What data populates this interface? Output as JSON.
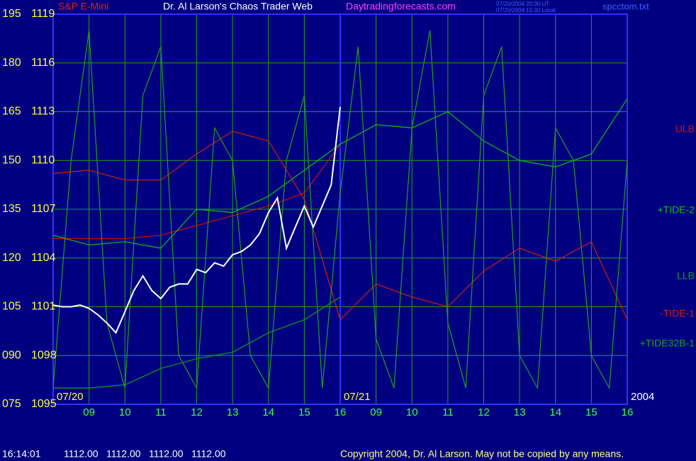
{
  "chart_data": {
    "type": "line",
    "header": {
      "symbol": "S&P E-Mini",
      "title": "Dr. Al Larson's Chaos Trader Web",
      "site": "Daytradingforecasts.com",
      "stamps": [
        "07/20/2004 20:30 UT",
        "07/20/2004 15:30 Local"
      ],
      "file": "spcctom.txt"
    },
    "xlim": [
      0,
      16
    ],
    "xticks": [
      {
        "value": 1,
        "label": "09"
      },
      {
        "value": 2,
        "label": "10"
      },
      {
        "value": 3,
        "label": "11"
      },
      {
        "value": 4,
        "label": "12"
      },
      {
        "value": 5,
        "label": "13"
      },
      {
        "value": 6,
        "label": "14"
      },
      {
        "value": 7,
        "label": "15"
      },
      {
        "value": 8,
        "label": "16"
      },
      {
        "value": 9,
        "label": "09"
      },
      {
        "value": 10,
        "label": "10"
      },
      {
        "value": 11,
        "label": "11"
      },
      {
        "value": 12,
        "label": "12"
      },
      {
        "value": 13,
        "label": "13"
      },
      {
        "value": 14,
        "label": "14"
      },
      {
        "value": 15,
        "label": "15"
      },
      {
        "value": 16,
        "label": "16"
      }
    ],
    "ylim": [
      75,
      195
    ],
    "yticks": [
      195,
      180,
      165,
      150,
      135,
      120,
      105,
      {
        "value": 90,
        "label": "090"
      },
      {
        "value": 75,
        "label": "075"
      }
    ],
    "y2lim": [
      1095,
      1119
    ],
    "y2ticks": [
      1119,
      1116,
      1113,
      1110,
      1107,
      1104,
      1101,
      1098,
      1095
    ],
    "grid": true,
    "annotations": [
      {
        "text": "07/20",
        "x": 0
      },
      {
        "text": "07/21",
        "x": 8
      },
      {
        "text": "2004",
        "x": 16
      }
    ],
    "series": [
      {
        "name": "ULB",
        "color": "#d01010",
        "x": [
          0,
          1,
          2,
          3,
          4,
          5,
          6,
          7,
          8
        ],
        "values": [
          126,
          126,
          126,
          127,
          130,
          133,
          136,
          140,
          155
        ]
      },
      {
        "name": "+TIDE-2",
        "color": "#10c010",
        "x": [
          0,
          1,
          2,
          3,
          4,
          5,
          6,
          7,
          8,
          9,
          10,
          11,
          12,
          13,
          14,
          15,
          16
        ],
        "values": [
          127,
          124,
          125,
          123,
          135,
          134,
          139,
          147,
          155,
          161,
          160,
          165,
          156,
          150,
          148,
          152,
          169
        ]
      },
      {
        "name": "LLB",
        "color": "#10a010",
        "x": [
          0,
          1,
          2,
          3,
          4,
          5,
          6,
          7,
          8
        ],
        "values": [
          80,
          80,
          81,
          86,
          89,
          91,
          97,
          101,
          108
        ]
      },
      {
        "name": "-TIDE-1",
        "color": "#d02010",
        "x": [
          0,
          1,
          2,
          3,
          4,
          5,
          6,
          7,
          8,
          9,
          10,
          11,
          12,
          13,
          14,
          15,
          16
        ],
        "values": [
          146,
          147,
          144,
          144,
          152,
          159,
          156,
          138,
          101,
          112,
          108,
          105,
          116,
          123,
          119,
          125,
          101
        ]
      },
      {
        "name": "+TIDE32B-1",
        "color": "#20a020",
        "x": [
          0,
          0.5,
          1,
          1.5,
          2,
          2.5,
          3,
          3.5,
          4,
          4.5,
          5,
          5.5,
          6,
          6.5,
          7,
          7.5,
          8,
          8.5,
          9,
          9.5,
          10,
          10.5,
          11,
          11.5,
          12,
          12.5,
          13,
          13.5,
          14,
          14.5,
          15,
          15.5,
          16
        ],
        "values": [
          80,
          150,
          190,
          100,
          80,
          170,
          185,
          90,
          80,
          160,
          150,
          90,
          80,
          150,
          170,
          80,
          140,
          185,
          95,
          80,
          160,
          190,
          100,
          80,
          170,
          185,
          90,
          80,
          160,
          150,
          90,
          80,
          150
        ]
      },
      {
        "color": "#ffffff",
        "axis": "y2",
        "x": [
          0,
          0.25,
          0.5,
          0.75,
          1,
          1.25,
          1.5,
          1.75,
          2,
          2.25,
          2.5,
          2.75,
          3,
          3.25,
          3.5,
          3.75,
          4,
          4.25,
          4.5,
          4.75,
          5,
          5.25,
          5.5,
          5.75,
          6,
          6.25,
          6.5,
          6.75,
          7,
          7.25,
          7.5,
          7.75,
          8
        ],
        "values": [
          1101.1,
          1101.0,
          1101.0,
          1101.1,
          1100.9,
          1100.5,
          1100.0,
          1099.4,
          1100.7,
          1102.0,
          1102.9,
          1102.0,
          1101.5,
          1102.2,
          1102.4,
          1102.4,
          1103.3,
          1103.1,
          1103.7,
          1103.5,
          1104.2,
          1104.4,
          1104.8,
          1105.5,
          1106.8,
          1107.7,
          1104.6,
          1105.9,
          1107.2,
          1105.9,
          1107.2,
          1108.5,
          1113.3
        ]
      }
    ]
  },
  "footer": {
    "time": "16:14:01",
    "quotes": [
      "1112.00",
      "1112.00",
      "1112.00",
      "1112.00"
    ],
    "copyright": "Copyright 2004, Dr. Al Larson. May not be copied by any means."
  }
}
